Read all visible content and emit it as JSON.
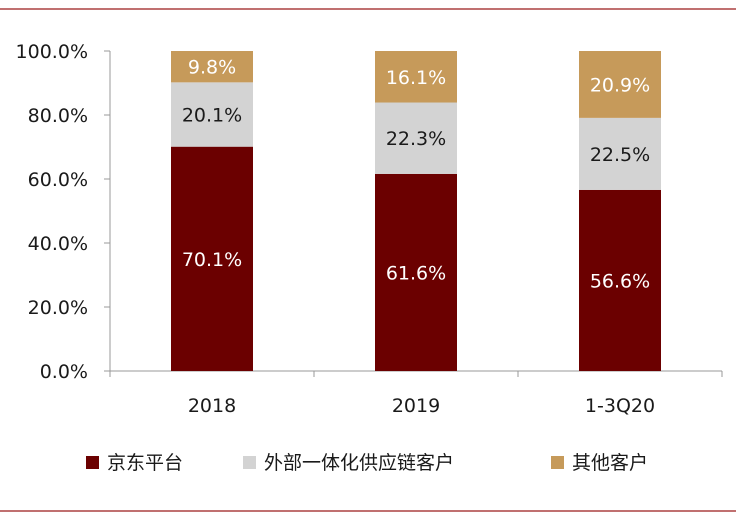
{
  "chart_data": {
    "type": "bar",
    "stacked": true,
    "categories": [
      "2018",
      "2019",
      "1-3Q20"
    ],
    "series": [
      {
        "name": "京东平台",
        "values": [
          70.1,
          61.6,
          56.6
        ],
        "labels": [
          "70.1%",
          "61.6%",
          "56.6%"
        ],
        "color": "#6B0000",
        "label_color": "#ffffff"
      },
      {
        "name": "外部一体化供应链客户",
        "values": [
          20.1,
          22.3,
          22.5
        ],
        "labels": [
          "20.1%",
          "22.3%",
          "22.5%"
        ],
        "color": "#D3D3D3",
        "label_color": "#1a1a1a"
      },
      {
        "name": "其他客户",
        "values": [
          9.8,
          16.1,
          20.9
        ],
        "labels": [
          "9.8%",
          "16.1%",
          "20.9%"
        ],
        "color": "#C69A5A",
        "label_color": "#ffffff"
      }
    ],
    "yticks": [
      "0.0%",
      "20.0%",
      "40.0%",
      "60.0%",
      "80.0%",
      "100.0%"
    ],
    "ylim": [
      0,
      100
    ],
    "legend_position": "bottom",
    "frame_color": "#9B1B1B"
  }
}
